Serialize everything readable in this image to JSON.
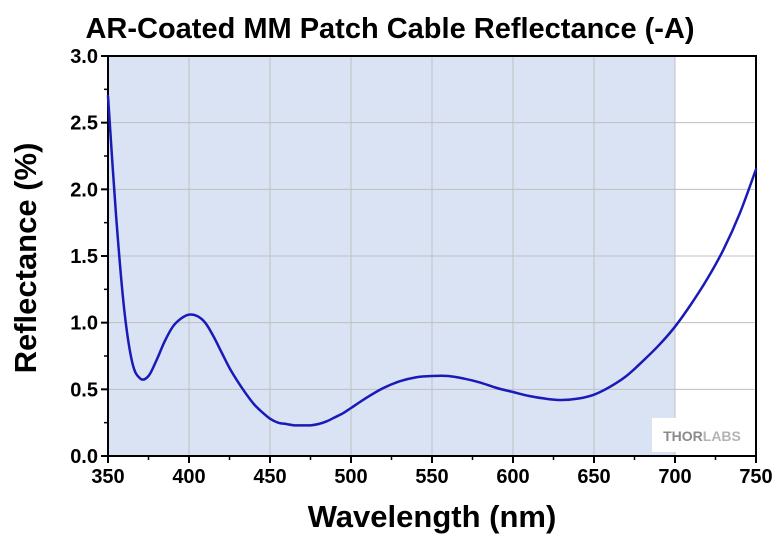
{
  "chart_data": {
    "type": "line",
    "title": "AR-Coated MM Patch Cable Reflectance (-A)",
    "xlabel": "Wavelength (nm)",
    "ylabel": "Reflectance (%)",
    "xlim": [
      350,
      750
    ],
    "ylim": [
      0,
      3.0
    ],
    "xticks": [
      "350",
      "400",
      "450",
      "500",
      "550",
      "600",
      "650",
      "700",
      "750"
    ],
    "yticks": [
      "0.0",
      "0.5",
      "1.0",
      "1.5",
      "2.0",
      "2.5",
      "3.0"
    ],
    "grid": true,
    "shaded_region": {
      "x_start": 350,
      "x_end": 700
    },
    "series": [
      {
        "values": [
          [
            350,
            2.7
          ],
          [
            355,
            1.8
          ],
          [
            360,
            1.1
          ],
          [
            365,
            0.7
          ],
          [
            370,
            0.58
          ],
          [
            375,
            0.6
          ],
          [
            380,
            0.72
          ],
          [
            385,
            0.86
          ],
          [
            390,
            0.97
          ],
          [
            395,
            1.03
          ],
          [
            400,
            1.06
          ],
          [
            405,
            1.05
          ],
          [
            410,
            1.0
          ],
          [
            415,
            0.9
          ],
          [
            420,
            0.78
          ],
          [
            425,
            0.66
          ],
          [
            430,
            0.56
          ],
          [
            435,
            0.47
          ],
          [
            440,
            0.39
          ],
          [
            445,
            0.33
          ],
          [
            450,
            0.28
          ],
          [
            455,
            0.25
          ],
          [
            460,
            0.24
          ],
          [
            465,
            0.23
          ],
          [
            470,
            0.23
          ],
          [
            475,
            0.23
          ],
          [
            480,
            0.24
          ],
          [
            485,
            0.26
          ],
          [
            490,
            0.29
          ],
          [
            495,
            0.32
          ],
          [
            500,
            0.36
          ],
          [
            510,
            0.44
          ],
          [
            520,
            0.51
          ],
          [
            530,
            0.56
          ],
          [
            540,
            0.59
          ],
          [
            550,
            0.6
          ],
          [
            560,
            0.6
          ],
          [
            570,
            0.58
          ],
          [
            580,
            0.55
          ],
          [
            590,
            0.51
          ],
          [
            600,
            0.48
          ],
          [
            610,
            0.45
          ],
          [
            620,
            0.43
          ],
          [
            630,
            0.42
          ],
          [
            640,
            0.43
          ],
          [
            650,
            0.46
          ],
          [
            660,
            0.52
          ],
          [
            670,
            0.6
          ],
          [
            680,
            0.71
          ],
          [
            690,
            0.83
          ],
          [
            700,
            0.97
          ],
          [
            710,
            1.14
          ],
          [
            720,
            1.33
          ],
          [
            730,
            1.55
          ],
          [
            740,
            1.82
          ],
          [
            750,
            2.15
          ]
        ],
        "color": "#1a1ab8"
      }
    ],
    "colors": {
      "shade": "#dae3f3",
      "grid": "#c0c0c0",
      "line": "#1a1ab8"
    }
  },
  "logo": {
    "text_left": "THOR",
    "text_right": "LABS"
  }
}
